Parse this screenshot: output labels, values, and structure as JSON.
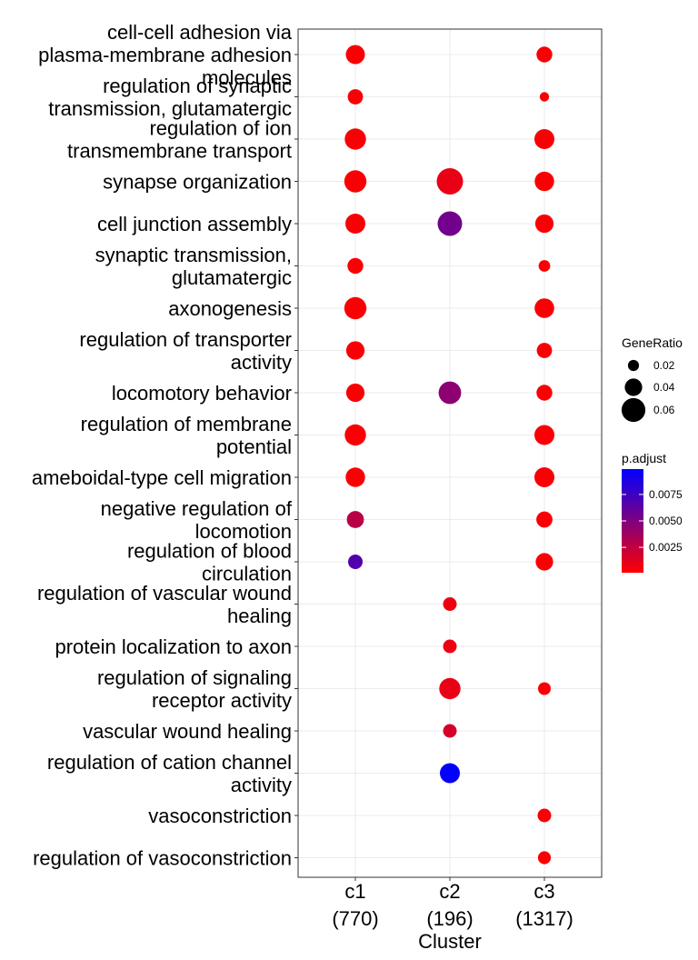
{
  "chart_data": {
    "type": "scatter",
    "title": "",
    "xlabel": "Cluster",
    "ylabel": "",
    "clusters": [
      {
        "id": "c1",
        "count": "(770)"
      },
      {
        "id": "c2",
        "count": "(196)"
      },
      {
        "id": "c3",
        "count": "(1317)"
      }
    ],
    "terms": [
      [
        "cell-cell adhesion via",
        "plasma-membrane adhesion",
        "molecules"
      ],
      [
        "regulation of synaptic",
        "transmission, glutamatergic"
      ],
      [
        "regulation of ion",
        "transmembrane transport"
      ],
      [
        "synapse organization"
      ],
      [
        "cell junction assembly"
      ],
      [
        "synaptic transmission,",
        "glutamatergic"
      ],
      [
        "axonogenesis"
      ],
      [
        "regulation of transporter",
        "activity"
      ],
      [
        "locomotory behavior"
      ],
      [
        "regulation of membrane",
        "potential"
      ],
      [
        "ameboidal-type cell migration"
      ],
      [
        "negative regulation of",
        "locomotion"
      ],
      [
        "regulation of blood",
        "circulation"
      ],
      [
        "regulation of vascular wound",
        "healing"
      ],
      [
        "protein localization to axon"
      ],
      [
        "regulation of signaling",
        "receptor activity"
      ],
      [
        "vascular wound healing"
      ],
      [
        "regulation of cation channel",
        "activity"
      ],
      [
        "vasoconstriction"
      ],
      [
        "regulation of vasoconstriction"
      ]
    ],
    "points": [
      {
        "term": 0,
        "cluster": "c1",
        "gene_ratio": 0.045,
        "p_adjust": 0.0003
      },
      {
        "term": 0,
        "cluster": "c3",
        "gene_ratio": 0.035,
        "p_adjust": 0.0003
      },
      {
        "term": 1,
        "cluster": "c1",
        "gene_ratio": 0.033,
        "p_adjust": 0.0003
      },
      {
        "term": 1,
        "cluster": "c3",
        "gene_ratio": 0.015,
        "p_adjust": 0.0003
      },
      {
        "term": 2,
        "cluster": "c1",
        "gene_ratio": 0.052,
        "p_adjust": 0.0003
      },
      {
        "term": 2,
        "cluster": "c3",
        "gene_ratio": 0.048,
        "p_adjust": 0.0003
      },
      {
        "term": 3,
        "cluster": "c1",
        "gene_ratio": 0.055,
        "p_adjust": 0.0003
      },
      {
        "term": 3,
        "cluster": "c2",
        "gene_ratio": 0.068,
        "p_adjust": 0.0009
      },
      {
        "term": 3,
        "cluster": "c3",
        "gene_ratio": 0.046,
        "p_adjust": 0.0003
      },
      {
        "term": 4,
        "cluster": "c1",
        "gene_ratio": 0.048,
        "p_adjust": 0.0003
      },
      {
        "term": 4,
        "cluster": "c2",
        "gene_ratio": 0.062,
        "p_adjust": 0.0055
      },
      {
        "term": 4,
        "cluster": "c3",
        "gene_ratio": 0.043,
        "p_adjust": 0.0003
      },
      {
        "term": 5,
        "cluster": "c1",
        "gene_ratio": 0.035,
        "p_adjust": 0.0003
      },
      {
        "term": 5,
        "cluster": "c3",
        "gene_ratio": 0.022,
        "p_adjust": 0.0003
      },
      {
        "term": 6,
        "cluster": "c1",
        "gene_ratio": 0.055,
        "p_adjust": 0.0003
      },
      {
        "term": 6,
        "cluster": "c3",
        "gene_ratio": 0.047,
        "p_adjust": 0.0003
      },
      {
        "term": 7,
        "cluster": "c1",
        "gene_ratio": 0.043,
        "p_adjust": 0.0003
      },
      {
        "term": 7,
        "cluster": "c3",
        "gene_ratio": 0.033,
        "p_adjust": 0.0003
      },
      {
        "term": 8,
        "cluster": "c1",
        "gene_ratio": 0.043,
        "p_adjust": 0.0003
      },
      {
        "term": 8,
        "cluster": "c2",
        "gene_ratio": 0.056,
        "p_adjust": 0.0045
      },
      {
        "term": 8,
        "cluster": "c3",
        "gene_ratio": 0.035,
        "p_adjust": 0.0003
      },
      {
        "term": 9,
        "cluster": "c1",
        "gene_ratio": 0.052,
        "p_adjust": 0.0003
      },
      {
        "term": 9,
        "cluster": "c3",
        "gene_ratio": 0.048,
        "p_adjust": 0.0003
      },
      {
        "term": 10,
        "cluster": "c1",
        "gene_ratio": 0.046,
        "p_adjust": 0.0003
      },
      {
        "term": 10,
        "cluster": "c3",
        "gene_ratio": 0.048,
        "p_adjust": 0.0003
      },
      {
        "term": 11,
        "cluster": "c1",
        "gene_ratio": 0.039,
        "p_adjust": 0.0028
      },
      {
        "term": 11,
        "cluster": "c3",
        "gene_ratio": 0.036,
        "p_adjust": 0.0003
      },
      {
        "term": 12,
        "cluster": "c1",
        "gene_ratio": 0.031,
        "p_adjust": 0.0068
      },
      {
        "term": 12,
        "cluster": "c3",
        "gene_ratio": 0.04,
        "p_adjust": 0.0003
      },
      {
        "term": 13,
        "cluster": "c2",
        "gene_ratio": 0.028,
        "p_adjust": 0.0007
      },
      {
        "term": 14,
        "cluster": "c2",
        "gene_ratio": 0.028,
        "p_adjust": 0.0008
      },
      {
        "term": 15,
        "cluster": "c2",
        "gene_ratio": 0.052,
        "p_adjust": 0.0009
      },
      {
        "term": 15,
        "cluster": "c3",
        "gene_ratio": 0.025,
        "p_adjust": 0.0003
      },
      {
        "term": 16,
        "cluster": "c2",
        "gene_ratio": 0.028,
        "p_adjust": 0.0017
      },
      {
        "term": 17,
        "cluster": "c2",
        "gene_ratio": 0.048,
        "p_adjust": 0.0097
      },
      {
        "term": 18,
        "cluster": "c3",
        "gene_ratio": 0.028,
        "p_adjust": 0.0003
      },
      {
        "term": 19,
        "cluster": "c3",
        "gene_ratio": 0.026,
        "p_adjust": 0.0003
      }
    ],
    "legend": {
      "size_title": "GeneRatio",
      "size_breaks": [
        0.02,
        0.04,
        0.06
      ],
      "size_labels": [
        "0.02",
        "0.04",
        "0.06"
      ],
      "color_title": "p.adjust",
      "color_breaks": [
        0.0025,
        0.005,
        0.0075
      ],
      "color_labels": [
        "0.0025",
        "0.0050",
        "0.0075"
      ],
      "color_range": [
        0.0001,
        0.0099
      ],
      "color_low": "#ff0000",
      "color_high": "#0000ff",
      "placement": "right"
    },
    "grid": true
  }
}
